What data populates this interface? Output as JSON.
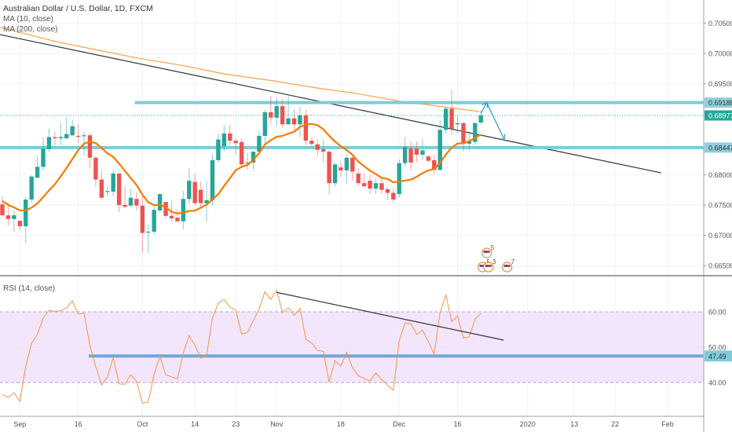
{
  "header": {
    "title": "Australian Dollar / U.S. Dollar, 1D, FXCM",
    "ma10_label": "MA (10, close)",
    "ma200_label": "MA (200, close)",
    "rsi_label": "RSI (14, close)"
  },
  "colors": {
    "up": "#26a69a",
    "down": "#ef5350",
    "ma10": "#f57c00",
    "ma200": "#ff9f43",
    "hline": "#7ecbd8",
    "last_price": "#26a69a",
    "rsi": "#f59347",
    "rsi_band": "#f3e6fc",
    "trendline": "#333333",
    "arrow": "#4aa3c9"
  },
  "chart_data": [
    {
      "type": "candlestick",
      "title": "Australian Dollar / U.S. Dollar, 1D, FXCM",
      "ylim": [
        0.663,
        0.7087
      ],
      "y_ticks": [
        "0.70500",
        "0.70000",
        "0.69500",
        "0.68000",
        "0.67500",
        "0.67000",
        "0.66500"
      ],
      "y_tick_values": [
        0.705,
        0.7,
        0.695,
        0.68,
        0.675,
        0.67,
        0.665
      ],
      "price_labels": [
        {
          "name": "resistance-level",
          "value": 0.69188,
          "label": "0.69188"
        },
        {
          "name": "last-price",
          "value": 0.68977,
          "label": "0.68977"
        },
        {
          "name": "support-level",
          "value": 0.68447,
          "label": "0.68447"
        }
      ],
      "x_ticks": [
        {
          "label": "Sep",
          "bar": 3
        },
        {
          "label": "16",
          "bar": 13
        },
        {
          "label": "Oct",
          "bar": 24
        },
        {
          "label": "14",
          "bar": 33
        },
        {
          "label": "23",
          "bar": 40
        },
        {
          "label": "Nov",
          "bar": 47
        },
        {
          "label": "18",
          "bar": 58
        },
        {
          "label": "Dec",
          "bar": 68
        },
        {
          "label": "16",
          "bar": 78
        },
        {
          "label": "2020",
          "bar": 90
        },
        {
          "label": "13",
          "bar": 98
        },
        {
          "label": "22",
          "bar": 105
        },
        {
          "label": "Feb",
          "bar": 114
        }
      ],
      "ohlc": [
        [
          0.6751,
          0.6764,
          0.6731,
          0.6733
        ],
        [
          0.6733,
          0.6753,
          0.6716,
          0.6727
        ],
        [
          0.6727,
          0.6741,
          0.6706,
          0.6733
        ],
        [
          0.6724,
          0.6724,
          0.6709,
          0.6715
        ],
        [
          0.6715,
          0.6764,
          0.6688,
          0.6759
        ],
        [
          0.6759,
          0.6799,
          0.6753,
          0.6797
        ],
        [
          0.6795,
          0.683,
          0.6794,
          0.6813
        ],
        [
          0.6813,
          0.6862,
          0.6807,
          0.6843
        ],
        [
          0.6842,
          0.6876,
          0.6837,
          0.6862
        ],
        [
          0.6862,
          0.6871,
          0.6849,
          0.686
        ],
        [
          0.686,
          0.6885,
          0.6849,
          0.6862
        ],
        [
          0.686,
          0.6895,
          0.6859,
          0.6867
        ],
        [
          0.6865,
          0.6891,
          0.6864,
          0.688
        ],
        [
          0.6864,
          0.6883,
          0.6852,
          0.6863
        ],
        [
          0.6864,
          0.6871,
          0.6832,
          0.6865
        ],
        [
          0.6865,
          0.6869,
          0.6812,
          0.6828
        ],
        [
          0.6828,
          0.683,
          0.678,
          0.6792
        ],
        [
          0.6792,
          0.6808,
          0.676,
          0.6762
        ],
        [
          0.6772,
          0.6781,
          0.6764,
          0.6773
        ],
        [
          0.6772,
          0.6807,
          0.6764,
          0.6802
        ],
        [
          0.6802,
          0.6802,
          0.6738,
          0.675
        ],
        [
          0.675,
          0.6781,
          0.6745,
          0.6747
        ],
        [
          0.6749,
          0.6777,
          0.6747,
          0.6762
        ],
        [
          0.676,
          0.6771,
          0.6741,
          0.6749
        ],
        [
          0.6749,
          0.6764,
          0.6671,
          0.6704
        ],
        [
          0.6705,
          0.6718,
          0.6671,
          0.6706
        ],
        [
          0.6706,
          0.6747,
          0.6702,
          0.6742
        ],
        [
          0.6741,
          0.6768,
          0.6738,
          0.6768
        ],
        [
          0.6755,
          0.6755,
          0.6729,
          0.6732
        ],
        [
          0.6732,
          0.6757,
          0.6723,
          0.6728
        ],
        [
          0.6729,
          0.6742,
          0.6723,
          0.6723
        ],
        [
          0.6723,
          0.6773,
          0.671,
          0.676
        ],
        [
          0.676,
          0.6811,
          0.6751,
          0.679
        ],
        [
          0.6788,
          0.6802,
          0.675,
          0.6753
        ],
        [
          0.6775,
          0.6789,
          0.6745,
          0.6753
        ],
        [
          0.6753,
          0.679,
          0.6723,
          0.6758
        ],
        [
          0.6758,
          0.6833,
          0.6749,
          0.6824
        ],
        [
          0.6824,
          0.6868,
          0.682,
          0.6858
        ],
        [
          0.6847,
          0.6881,
          0.684,
          0.6868
        ],
        [
          0.6868,
          0.6883,
          0.6849,
          0.6856
        ],
        [
          0.6856,
          0.6859,
          0.6833,
          0.6852
        ],
        [
          0.6854,
          0.6859,
          0.6811,
          0.6817
        ],
        [
          0.6819,
          0.6836,
          0.6808,
          0.682
        ],
        [
          0.682,
          0.6838,
          0.6808,
          0.6838
        ],
        [
          0.6838,
          0.6873,
          0.6838,
          0.6864
        ],
        [
          0.6864,
          0.6907,
          0.6852,
          0.6903
        ],
        [
          0.6903,
          0.693,
          0.6883,
          0.6894
        ],
        [
          0.6894,
          0.6926,
          0.688,
          0.6913
        ],
        [
          0.6913,
          0.6925,
          0.6877,
          0.6883
        ],
        [
          0.6883,
          0.6929,
          0.6883,
          0.6893
        ],
        [
          0.6893,
          0.6908,
          0.6873,
          0.6883
        ],
        [
          0.6883,
          0.6912,
          0.6862,
          0.6898
        ],
        [
          0.6898,
          0.6907,
          0.6849,
          0.6856
        ],
        [
          0.6856,
          0.6862,
          0.6847,
          0.6851
        ],
        [
          0.685,
          0.6858,
          0.6832,
          0.6841
        ],
        [
          0.6842,
          0.6858,
          0.682,
          0.6838
        ],
        [
          0.6838,
          0.6841,
          0.6768,
          0.6786
        ],
        [
          0.6786,
          0.682,
          0.678,
          0.6817
        ],
        [
          0.6812,
          0.682,
          0.6797,
          0.6807
        ],
        [
          0.6807,
          0.6834,
          0.6785,
          0.6828
        ],
        [
          0.6828,
          0.6833,
          0.679,
          0.6805
        ],
        [
          0.6802,
          0.681,
          0.6782,
          0.6786
        ],
        [
          0.6786,
          0.6802,
          0.678,
          0.6781
        ],
        [
          0.679,
          0.6799,
          0.6768,
          0.6777
        ],
        [
          0.6777,
          0.6794,
          0.6768,
          0.6786
        ],
        [
          0.6786,
          0.6794,
          0.6768,
          0.6775
        ],
        [
          0.6776,
          0.678,
          0.6758,
          0.677
        ],
        [
          0.677,
          0.6777,
          0.6754,
          0.6759
        ],
        [
          0.6768,
          0.6825,
          0.6762,
          0.6819
        ],
        [
          0.6819,
          0.6862,
          0.6813,
          0.6846
        ],
        [
          0.6843,
          0.6855,
          0.6807,
          0.682
        ],
        [
          0.6843,
          0.6855,
          0.6821,
          0.6833
        ],
        [
          0.6833,
          0.6858,
          0.6824,
          0.684
        ],
        [
          0.683,
          0.6833,
          0.682,
          0.6823
        ],
        [
          0.6824,
          0.6833,
          0.6801,
          0.6808
        ],
        [
          0.6808,
          0.689,
          0.6806,
          0.6874
        ],
        [
          0.6874,
          0.6913,
          0.6868,
          0.6909
        ],
        [
          0.6909,
          0.6939,
          0.6865,
          0.6876
        ],
        [
          0.6883,
          0.6898,
          0.6869,
          0.6885
        ],
        [
          0.6885,
          0.6887,
          0.6838,
          0.6851
        ],
        [
          0.6851,
          0.6868,
          0.684,
          0.6855
        ],
        [
          0.6854,
          0.6887,
          0.6849,
          0.6885
        ],
        [
          0.6886,
          0.6906,
          0.6883,
          0.6898
        ]
      ],
      "ma10_prior_closes": [
        0.679,
        0.6775,
        0.6762,
        0.676,
        0.6752,
        0.6745,
        0.6738,
        0.675,
        0.676
      ],
      "ma200": [
        [
          -0.4,
          0.7043
        ],
        [
          9.4,
          0.7019
        ],
        [
          23.3,
          0.6992
        ],
        [
          30.4,
          0.6981
        ],
        [
          38.1,
          0.6966
        ],
        [
          46.3,
          0.6955
        ],
        [
          54.5,
          0.6942
        ],
        [
          60,
          0.6935
        ],
        [
          68.2,
          0.6921
        ],
        [
          76.4,
          0.6911
        ],
        [
          81.7,
          0.6904
        ]
      ],
      "drawings": {
        "trendline": [
          [
            -0.4,
            0.7031
          ],
          [
            112.9,
            0.6803
          ]
        ],
        "resistance_line": {
          "value": 0.69188,
          "from_bar": 22.7
        },
        "support_line": {
          "value": 0.68447,
          "from_bar": -1
        },
        "projection_arrow": [
          [
            82,
            0.6901
          ],
          [
            83,
            0.6919
          ],
          [
            86,
            0.6858
          ]
        ]
      },
      "events": [
        {
          "label": "5",
          "bar": 83,
          "row": 0
        },
        {
          "label": "5",
          "bar": 82.3,
          "row": 1
        },
        {
          "label": "3",
          "bar": 83.3,
          "row": 1
        },
        {
          "label": "7",
          "bar": 86.5,
          "row": 1
        }
      ]
    },
    {
      "type": "line",
      "title": "RSI (14, close)",
      "ylim": [
        30.5,
        69
      ],
      "y_ticks": [
        "60.00",
        "50.00",
        "40.00"
      ],
      "y_tick_values": [
        60,
        50,
        40
      ],
      "band": [
        40,
        60
      ],
      "current_label": {
        "value": 47.49,
        "label": "47.49"
      },
      "values": [
        36.6,
        35.8,
        37.1,
        34.7,
        44.5,
        51.1,
        53.6,
        58.3,
        60.4,
        60.1,
        60.3,
        61.1,
        63.1,
        59.4,
        59.6,
        50.5,
        44.5,
        39.3,
        41.6,
        47.1,
        39.6,
        39.5,
        42.2,
        40.3,
        34.1,
        34.5,
        42.3,
        47.5,
        42.2,
        41.6,
        41.0,
        48.3,
        53.3,
        50.5,
        46.9,
        47.7,
        58.3,
        62.4,
        63.5,
        61.3,
        60.5,
        53.7,
        54.2,
        57.5,
        60.9,
        65.7,
        63.5,
        66.1,
        59.8,
        61.1,
        59.0,
        61.0,
        52.3,
        51.2,
        49.1,
        48.8,
        40.1,
        46.2,
        44.7,
        48.5,
        44.2,
        41.9,
        41.2,
        40.4,
        42.7,
        40.8,
        39.3,
        37.8,
        51.8,
        56.8,
        56.7,
        53.6,
        54.8,
        51.6,
        48.0,
        59.8,
        64.8,
        57.2,
        58.8,
        52.6,
        52.9,
        57.9,
        59.6
      ],
      "drawings": {
        "trendline": [
          [
            47,
            65.5
          ],
          [
            85.9,
            52.0
          ]
        ],
        "hline": {
          "value": 47.49,
          "from_bar": 14.8
        }
      }
    }
  ]
}
